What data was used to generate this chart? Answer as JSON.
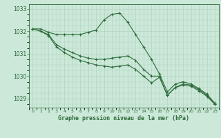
{
  "bg_color": "#cbe8d8",
  "grid_color": "#b0d4c0",
  "line_color": "#2d6b3a",
  "marker_color": "#2d6b3a",
  "xlabel": "Graphe pression niveau de la mer (hPa)",
  "xlabel_color": "#2d6b3a",
  "xlim": [
    -0.5,
    23.5
  ],
  "ylim": [
    1028.6,
    1033.2
  ],
  "yticks": [
    1029,
    1030,
    1031,
    1032,
    1033
  ],
  "xticks": [
    0,
    1,
    2,
    3,
    4,
    5,
    6,
    7,
    8,
    9,
    10,
    11,
    12,
    13,
    14,
    15,
    16,
    17,
    18,
    19,
    20,
    21,
    22,
    23
  ],
  "series": [
    [
      1032.1,
      1032.1,
      1031.95,
      1031.85,
      1031.85,
      1031.85,
      1031.85,
      1031.95,
      1032.05,
      1032.5,
      1032.75,
      1032.8,
      1032.4,
      1031.85,
      1031.3,
      1030.75,
      1030.1,
      1029.3,
      1029.65,
      1029.75,
      1029.65,
      1029.45,
      1029.2,
      1028.8
    ],
    [
      1032.1,
      1032.0,
      1031.85,
      1031.4,
      1031.2,
      1031.05,
      1030.9,
      1030.8,
      1030.75,
      1030.75,
      1030.8,
      1030.85,
      1030.9,
      1030.7,
      1030.3,
      1030.0,
      1030.0,
      1029.15,
      1029.5,
      1029.65,
      1029.6,
      1029.4,
      1029.15,
      1028.75
    ],
    [
      1032.1,
      1032.0,
      1031.8,
      1031.3,
      1031.05,
      1030.85,
      1030.7,
      1030.6,
      1030.5,
      1030.45,
      1030.4,
      1030.45,
      1030.5,
      1030.3,
      1030.0,
      1029.7,
      1029.95,
      1029.15,
      1029.5,
      1029.6,
      1029.55,
      1029.35,
      1029.1,
      1028.75
    ]
  ],
  "fig_width": 3.2,
  "fig_height": 2.0,
  "dpi": 100
}
